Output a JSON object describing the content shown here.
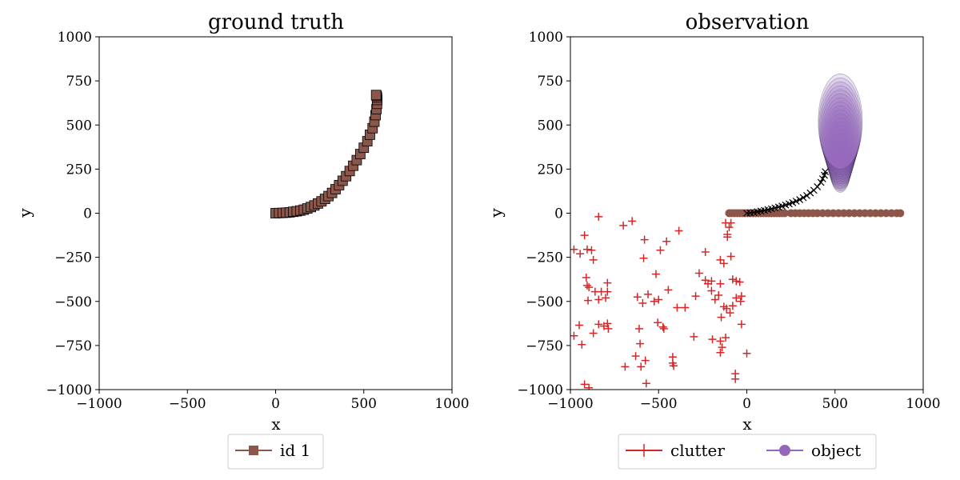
{
  "chart_data": [
    {
      "type": "line",
      "title": "ground truth",
      "xlabel": "x",
      "ylabel": "y",
      "xlim": [
        -1000,
        1000
      ],
      "ylim": [
        -1000,
        1000
      ],
      "xticks": [
        "−1000",
        "−500",
        "0",
        "500",
        "1000"
      ],
      "yticks": [
        "−1000",
        "−750",
        "−500",
        "−250",
        "0",
        "250",
        "500",
        "750",
        "1000"
      ],
      "grid": false,
      "legend_position": "below",
      "series": [
        {
          "name": "id 1",
          "marker": "square",
          "color": "#8c564b",
          "x": [
            0,
            20,
            40,
            60,
            80,
            100,
            120,
            140,
            160,
            180,
            200,
            220,
            240,
            260,
            280,
            300,
            320,
            340,
            360,
            380,
            400,
            420,
            440,
            460,
            480,
            500,
            520,
            535,
            550,
            560,
            567,
            572,
            575,
            576,
            575,
            573,
            570
          ],
          "y": [
            0,
            1,
            2,
            3,
            5,
            8,
            11,
            15,
            20,
            27,
            35,
            44,
            55,
            67,
            81,
            97,
            115,
            136,
            159,
            184,
            210,
            239,
            269,
            301,
            335,
            371,
            408,
            445,
            482,
            519,
            556,
            590,
            620,
            642,
            656,
            665,
            670
          ]
        }
      ]
    },
    {
      "type": "scatter",
      "title": "observation",
      "xlabel": "x",
      "ylabel": "y",
      "xlim": [
        -1000,
        1000
      ],
      "ylim": [
        -1000,
        1000
      ],
      "xticks": [
        "−1000",
        "−500",
        "0",
        "500",
        "1000"
      ],
      "yticks": [
        "−1000",
        "−750",
        "−500",
        "−250",
        "0",
        "250",
        "500",
        "750",
        "1000"
      ],
      "grid": false,
      "legend_position": "below",
      "series": [
        {
          "name": "clutter",
          "marker": "plus",
          "color": "#d62728",
          "points": [
            [
              -980,
              -205
            ],
            [
              -945,
              -230
            ],
            [
              -920,
              -125
            ],
            [
              -905,
              -205
            ],
            [
              -880,
              -210
            ],
            [
              -870,
              -265
            ],
            [
              -840,
              -20
            ],
            [
              -910,
              -365
            ],
            [
              -905,
              -410
            ],
            [
              -895,
              -420
            ],
            [
              -900,
              -495
            ],
            [
              -860,
              -445
            ],
            [
              -840,
              -490
            ],
            [
              -825,
              -445
            ],
            [
              -800,
              -480
            ],
            [
              -790,
              -395
            ],
            [
              -790,
              -445
            ],
            [
              -840,
              -630
            ],
            [
              -810,
              -640
            ],
            [
              -790,
              -625
            ],
            [
              -785,
              -655
            ],
            [
              -870,
              -680
            ],
            [
              -950,
              -635
            ],
            [
              -980,
              -695
            ],
            [
              -935,
              -745
            ],
            [
              -920,
              -970
            ],
            [
              -895,
              -990
            ],
            [
              -700,
              -70
            ],
            [
              -650,
              -45
            ],
            [
              -580,
              -150
            ],
            [
              -585,
              -255
            ],
            [
              -620,
              -475
            ],
            [
              -590,
              -510
            ],
            [
              -560,
              -460
            ],
            [
              -525,
              -500
            ],
            [
              -500,
              -490
            ],
            [
              -475,
              -645
            ],
            [
              -505,
              -620
            ],
            [
              -470,
              -655
            ],
            [
              -515,
              -345
            ],
            [
              -490,
              -210
            ],
            [
              -455,
              -160
            ],
            [
              -385,
              -100
            ],
            [
              -445,
              -435
            ],
            [
              -395,
              -535
            ],
            [
              -350,
              -535
            ],
            [
              -610,
              -655
            ],
            [
              -605,
              -740
            ],
            [
              -630,
              -810
            ],
            [
              -575,
              -835
            ],
            [
              -600,
              -870
            ],
            [
              -690,
              -870
            ],
            [
              -570,
              -965
            ],
            [
              -420,
              -815
            ],
            [
              -420,
              -850
            ],
            [
              -415,
              -865
            ],
            [
              -300,
              -700
            ],
            [
              -290,
              -470
            ],
            [
              -270,
              -340
            ],
            [
              -235,
              -220
            ],
            [
              -235,
              -380
            ],
            [
              -220,
              -400
            ],
            [
              -200,
              -385
            ],
            [
              -200,
              -440
            ],
            [
              -180,
              -490
            ],
            [
              -160,
              -465
            ],
            [
              -150,
              -400
            ],
            [
              -145,
              -590
            ],
            [
              -130,
              -530
            ],
            [
              -115,
              -540
            ],
            [
              -95,
              -565
            ],
            [
              -120,
              -705
            ],
            [
              -150,
              -725
            ],
            [
              -140,
              -760
            ],
            [
              -150,
              -790
            ],
            [
              -195,
              -715
            ],
            [
              -150,
              -265
            ],
            [
              -130,
              -285
            ],
            [
              -110,
              -135
            ],
            [
              -100,
              -80
            ],
            [
              -90,
              -55
            ],
            [
              -90,
              -245
            ],
            [
              -80,
              -375
            ],
            [
              -60,
              -385
            ],
            [
              -40,
              -390
            ],
            [
              -60,
              -480
            ],
            [
              -30,
              -470
            ],
            [
              -35,
              -500
            ],
            [
              -80,
              -525
            ],
            [
              -30,
              -630
            ],
            [
              -65,
              -910
            ],
            [
              -65,
              -940
            ],
            [
              0,
              -795
            ],
            [
              -110,
              -120
            ],
            [
              -120,
              -55
            ]
          ]
        },
        {
          "name": "object",
          "marker": "circle",
          "color": "#9467bd",
          "points": [
            [
              -100,
              0
            ],
            [
              -85,
              0
            ],
            [
              -70,
              0
            ],
            [
              -55,
              0
            ],
            [
              -40,
              0
            ],
            [
              -25,
              0
            ],
            [
              -10,
              0
            ],
            [
              5,
              0
            ],
            [
              20,
              0
            ],
            [
              35,
              0
            ],
            [
              50,
              0
            ],
            [
              65,
              0
            ],
            [
              80,
              0
            ],
            [
              95,
              0
            ],
            [
              110,
              0
            ],
            [
              125,
              0
            ],
            [
              140,
              0
            ],
            [
              155,
              0
            ],
            [
              170,
              0
            ],
            [
              185,
              0
            ],
            [
              200,
              0
            ],
            [
              215,
              0
            ],
            [
              250,
              0
            ],
            [
              275,
              0
            ],
            [
              300,
              0
            ],
            [
              325,
              0
            ],
            [
              350,
              0
            ],
            [
              375,
              0
            ],
            [
              400,
              0
            ],
            [
              430,
              0
            ],
            [
              460,
              0
            ],
            [
              490,
              0
            ],
            [
              520,
              0
            ],
            [
              550,
              0
            ],
            [
              580,
              0
            ],
            [
              610,
              0
            ],
            [
              640,
              0
            ],
            [
              670,
              0
            ],
            [
              700,
              0
            ],
            [
              730,
              0
            ],
            [
              760,
              0
            ],
            [
              790,
              0
            ],
            [
              820,
              0
            ],
            [
              850,
              0
            ],
            [
              870,
              0
            ]
          ]
        },
        {
          "marker": "x",
          "color": "#000000",
          "points": [
            [
              0,
              0
            ],
            [
              20,
              2
            ],
            [
              40,
              4
            ],
            [
              60,
              8
            ],
            [
              80,
              12
            ],
            [
              100,
              16
            ],
            [
              120,
              20
            ],
            [
              140,
              25
            ],
            [
              160,
              30
            ],
            [
              180,
              35
            ],
            [
              200,
              40
            ],
            [
              220,
              46
            ],
            [
              240,
              53
            ],
            [
              260,
              60
            ],
            [
              280,
              68
            ],
            [
              300,
              77
            ],
            [
              320,
              88
            ],
            [
              340,
              100
            ],
            [
              360,
              115
            ],
            [
              380,
              130
            ],
            [
              400,
              150
            ],
            [
              420,
              175
            ],
            [
              430,
              195
            ],
            [
              440,
              215
            ],
            [
              445,
              235
            ]
          ]
        }
      ],
      "ellipses": {
        "color": "#9467bd",
        "center_x": 530,
        "center_start_y": 240,
        "center_end_y": 520,
        "semi_x": 125,
        "semi_y": 270
      }
    }
  ]
}
